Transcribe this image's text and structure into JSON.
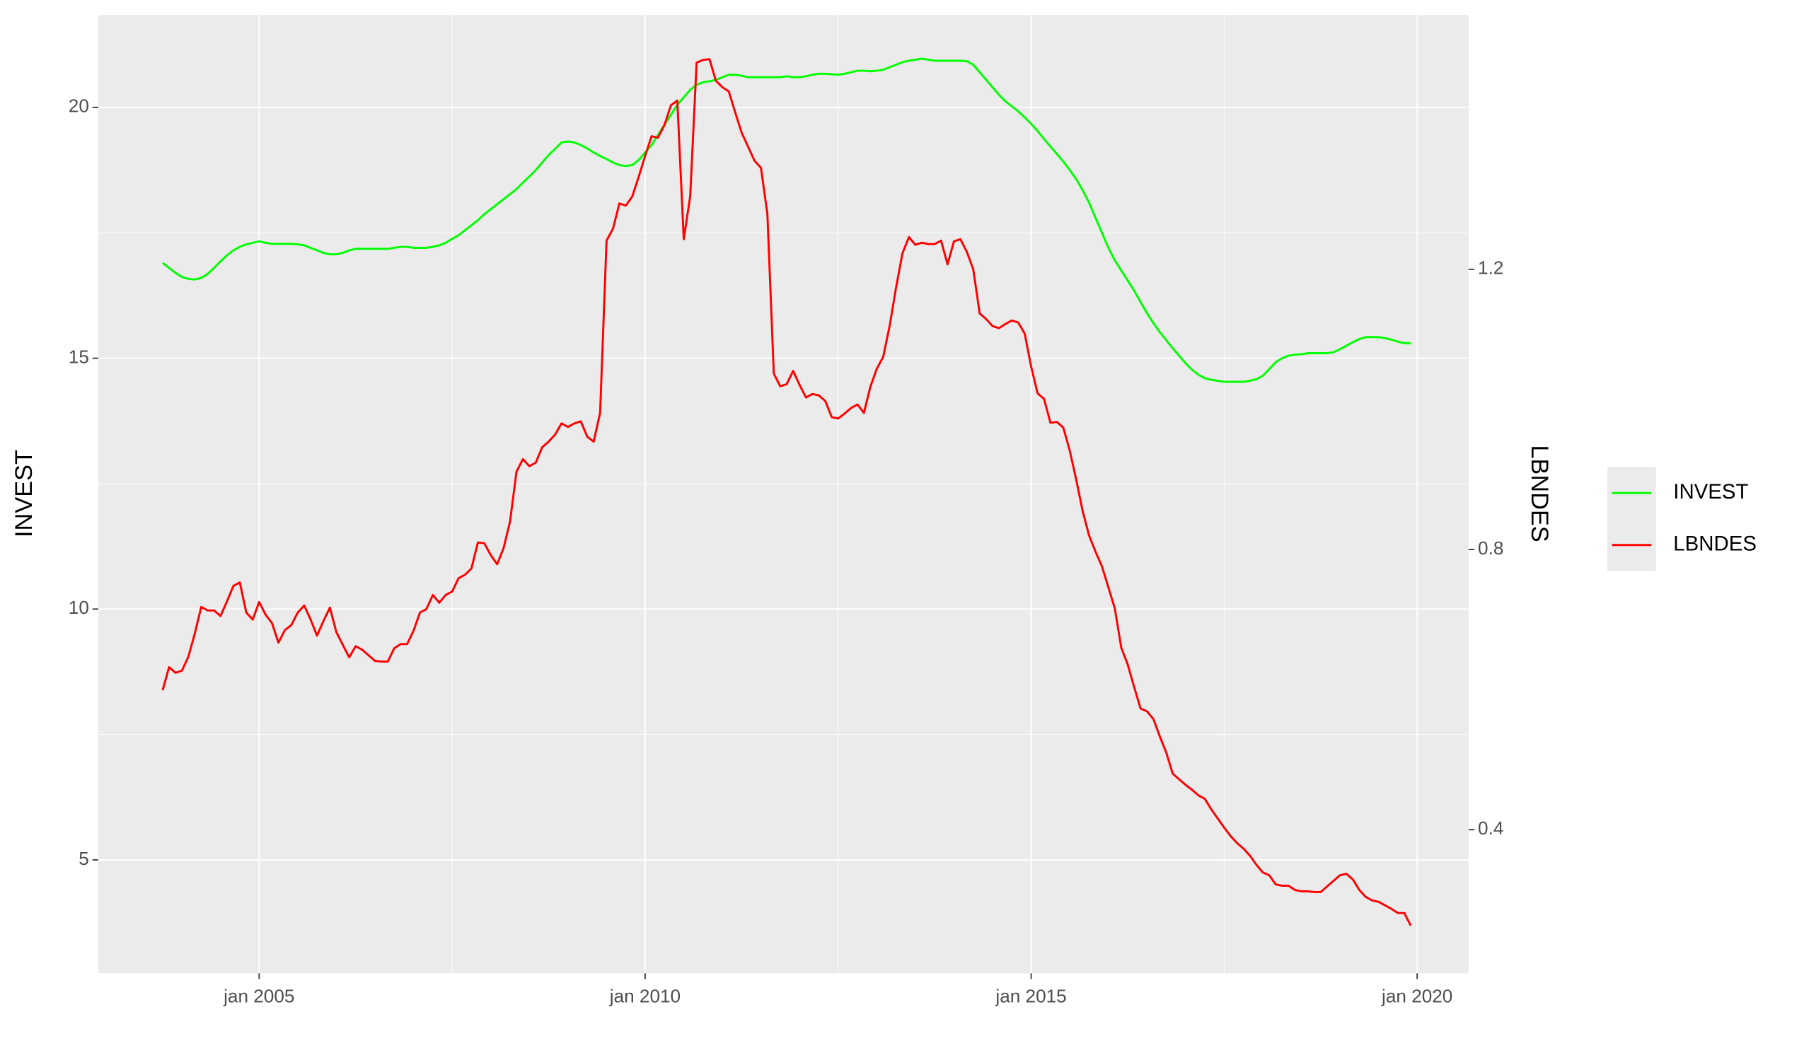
{
  "chart_data": {
    "type": "line",
    "ylabel": "INVEST",
    "y2label": "LBNDES",
    "x": [
      "2003-10",
      "2003-11",
      "2003-12",
      "2004-01",
      "2004-02",
      "2004-03",
      "2004-04",
      "2004-05",
      "2004-06",
      "2004-07",
      "2004-08",
      "2004-09",
      "2004-10",
      "2004-11",
      "2004-12",
      "2005-01",
      "2005-02",
      "2005-03",
      "2005-04",
      "2005-05",
      "2005-06",
      "2005-07",
      "2005-08",
      "2005-09",
      "2005-10",
      "2005-11",
      "2005-12",
      "2006-01",
      "2006-02",
      "2006-03",
      "2006-04",
      "2006-05",
      "2006-06",
      "2006-07",
      "2006-08",
      "2006-09",
      "2006-10",
      "2006-11",
      "2006-12",
      "2007-01",
      "2007-02",
      "2007-03",
      "2007-04",
      "2007-05",
      "2007-06",
      "2007-07",
      "2007-08",
      "2007-09",
      "2007-10",
      "2007-11",
      "2007-12",
      "2008-01",
      "2008-02",
      "2008-03",
      "2008-04",
      "2008-05",
      "2008-06",
      "2008-07",
      "2008-08",
      "2008-09",
      "2008-10",
      "2008-11",
      "2008-12",
      "2009-01",
      "2009-02",
      "2009-03",
      "2009-04",
      "2009-05",
      "2009-06",
      "2009-07",
      "2009-08",
      "2009-09",
      "2009-10",
      "2009-11",
      "2009-12",
      "2010-01",
      "2010-02",
      "2010-03",
      "2010-04",
      "2010-05",
      "2010-06",
      "2010-07",
      "2010-08",
      "2010-09",
      "2010-10",
      "2010-11",
      "2010-12",
      "2011-01",
      "2011-02",
      "2011-03",
      "2011-04",
      "2011-05",
      "2011-06",
      "2011-07",
      "2011-08",
      "2011-09",
      "2011-10",
      "2011-11",
      "2011-12",
      "2012-01",
      "2012-02",
      "2012-03",
      "2012-04",
      "2012-05",
      "2012-06",
      "2012-07",
      "2012-08",
      "2012-09",
      "2012-10",
      "2012-11",
      "2012-12",
      "2013-01",
      "2013-02",
      "2013-03",
      "2013-04",
      "2013-05",
      "2013-06",
      "2013-07",
      "2013-08",
      "2013-09",
      "2013-10",
      "2013-11",
      "2013-12",
      "2014-01",
      "2014-02",
      "2014-03",
      "2014-04",
      "2014-05",
      "2014-06",
      "2014-07",
      "2014-08",
      "2014-09",
      "2014-10",
      "2014-11",
      "2014-12",
      "2015-01",
      "2015-02",
      "2015-03",
      "2015-04",
      "2015-05",
      "2015-06",
      "2015-07",
      "2015-08",
      "2015-09",
      "2015-10",
      "2015-11",
      "2015-12",
      "2016-01",
      "2016-02",
      "2016-03",
      "2016-04",
      "2016-05",
      "2016-06",
      "2016-07",
      "2016-08",
      "2016-09",
      "2016-10",
      "2016-11",
      "2016-12",
      "2017-01",
      "2017-02",
      "2017-03",
      "2017-04",
      "2017-05",
      "2017-06",
      "2017-07",
      "2017-08",
      "2017-09",
      "2017-10",
      "2017-11",
      "2017-12",
      "2018-01",
      "2018-02",
      "2018-03",
      "2018-04",
      "2018-05",
      "2018-06",
      "2018-07",
      "2018-08",
      "2018-09",
      "2018-10",
      "2018-11",
      "2018-12",
      "2019-01",
      "2019-02",
      "2019-03",
      "2019-04",
      "2019-05",
      "2019-06",
      "2019-07",
      "2019-08",
      "2019-09",
      "2019-10",
      "2019-11",
      "2019-12"
    ],
    "series": [
      {
        "name": "INVEST",
        "color": "#00ff00",
        "axis": "y",
        "values": [
          16.9,
          16.8,
          16.7,
          16.62,
          16.58,
          16.57,
          16.6,
          16.68,
          16.8,
          16.93,
          17.05,
          17.15,
          17.22,
          17.27,
          17.3,
          17.33,
          17.3,
          17.28,
          17.28,
          17.28,
          17.28,
          17.27,
          17.25,
          17.2,
          17.15,
          17.1,
          17.07,
          17.07,
          17.1,
          17.15,
          17.18,
          17.18,
          17.18,
          17.18,
          17.18,
          17.18,
          17.2,
          17.22,
          17.22,
          17.2,
          17.2,
          17.2,
          17.22,
          17.25,
          17.3,
          17.38,
          17.45,
          17.55,
          17.65,
          17.75,
          17.87,
          17.97,
          18.07,
          18.17,
          18.27,
          18.37,
          18.5,
          18.62,
          18.75,
          18.9,
          19.05,
          19.17,
          19.3,
          19.32,
          19.3,
          19.25,
          19.18,
          19.1,
          19.03,
          18.97,
          18.9,
          18.85,
          18.83,
          18.85,
          18.95,
          19.1,
          19.25,
          19.45,
          19.65,
          19.85,
          20.05,
          20.2,
          20.35,
          20.45,
          20.5,
          20.52,
          20.55,
          20.6,
          20.65,
          20.65,
          20.63,
          20.6,
          20.6,
          20.6,
          20.6,
          20.6,
          20.6,
          20.62,
          20.6,
          20.6,
          20.62,
          20.65,
          20.67,
          20.67,
          20.66,
          20.65,
          20.67,
          20.7,
          20.73,
          20.73,
          20.72,
          20.73,
          20.75,
          20.8,
          20.85,
          20.9,
          20.93,
          20.95,
          20.97,
          20.95,
          20.93,
          20.93,
          20.93,
          20.93,
          20.93,
          20.92,
          20.85,
          20.7,
          20.55,
          20.4,
          20.25,
          20.12,
          20.02,
          19.92,
          19.8,
          19.67,
          19.53,
          19.37,
          19.22,
          19.07,
          18.92,
          18.75,
          18.57,
          18.35,
          18.1,
          17.8,
          17.5,
          17.2,
          16.95,
          16.75,
          16.55,
          16.35,
          16.12,
          15.9,
          15.7,
          15.52,
          15.36,
          15.2,
          15.05,
          14.9,
          14.77,
          14.67,
          14.6,
          14.57,
          14.55,
          14.53,
          14.53,
          14.53,
          14.53,
          14.55,
          14.58,
          14.65,
          14.78,
          14.92,
          15.0,
          15.05,
          15.07,
          15.08,
          15.1,
          15.1,
          15.1,
          15.1,
          15.12,
          15.18,
          15.25,
          15.32,
          15.38,
          15.42,
          15.42,
          15.42,
          15.4,
          15.37,
          15.33,
          15.3,
          15.3
        ]
      },
      {
        "name": "LBNDES",
        "color": "#ff0000",
        "axis": "y2",
        "values": [
          0.599,
          0.632,
          0.624,
          0.627,
          0.647,
          0.68,
          0.718,
          0.713,
          0.713,
          0.705,
          0.726,
          0.748,
          0.753,
          0.71,
          0.7,
          0.725,
          0.707,
          0.695,
          0.667,
          0.685,
          0.692,
          0.71,
          0.72,
          0.7,
          0.677,
          0.698,
          0.717,
          0.682,
          0.664,
          0.646,
          0.662,
          0.657,
          0.649,
          0.641,
          0.64,
          0.64,
          0.659,
          0.665,
          0.665,
          0.684,
          0.71,
          0.715,
          0.735,
          0.724,
          0.735,
          0.74,
          0.759,
          0.764,
          0.773,
          0.81,
          0.809,
          0.792,
          0.779,
          0.802,
          0.84,
          0.911,
          0.929,
          0.919,
          0.924,
          0.946,
          0.954,
          0.964,
          0.98,
          0.975,
          0.98,
          0.983,
          0.961,
          0.954,
          0.995,
          1.241,
          1.258,
          1.294,
          1.291,
          1.304,
          1.332,
          1.362,
          1.39,
          1.388,
          1.406,
          1.434,
          1.441,
          1.243,
          1.304,
          1.495,
          1.499,
          1.5,
          1.469,
          1.46,
          1.454,
          1.424,
          1.395,
          1.375,
          1.355,
          1.345,
          1.279,
          1.051,
          1.033,
          1.036,
          1.055,
          1.035,
          1.017,
          1.022,
          1.02,
          1.012,
          0.989,
          0.987,
          0.994,
          1.002,
          1.007,
          0.995,
          1.032,
          1.058,
          1.075,
          1.119,
          1.174,
          1.223,
          1.246,
          1.235,
          1.238,
          1.236,
          1.236,
          1.241,
          1.207,
          1.24,
          1.243,
          1.225,
          1.2,
          1.137,
          1.129,
          1.119,
          1.116,
          1.122,
          1.127,
          1.124,
          1.108,
          1.061,
          1.023,
          1.015,
          0.981,
          0.982,
          0.974,
          0.941,
          0.9,
          0.855,
          0.82,
          0.797,
          0.776,
          0.746,
          0.716,
          0.66,
          0.636,
          0.604,
          0.573,
          0.569,
          0.558,
          0.533,
          0.51,
          0.48,
          0.472,
          0.464,
          0.457,
          0.449,
          0.444,
          0.429,
          0.416,
          0.403,
          0.391,
          0.381,
          0.373,
          0.363,
          0.35,
          0.339,
          0.335,
          0.322,
          0.32,
          0.32,
          0.314,
          0.312,
          0.312,
          0.311,
          0.311,
          0.319,
          0.327,
          0.335,
          0.337,
          0.329,
          0.314,
          0.304,
          0.299,
          0.297,
          0.292,
          0.287,
          0.281,
          0.281,
          0.263
        ]
      }
    ],
    "xlim": [
      "2002-12",
      "2020-09"
    ],
    "xticks": [
      {
        "value": "2005-01",
        "label": "jan 2005"
      },
      {
        "value": "2010-01",
        "label": "jan 2010"
      },
      {
        "value": "2015-01",
        "label": "jan 2015"
      },
      {
        "value": "2020-01",
        "label": "jan 2020"
      }
    ],
    "ylim": [
      2.74,
      21.84
    ],
    "yticks": [
      5,
      10,
      15,
      20
    ],
    "y2lim": [
      0.195,
      1.563
    ],
    "y2ticks": [
      0.4,
      0.8,
      1.2
    ],
    "grid": true,
    "minor_grid": true,
    "legend": "right"
  }
}
